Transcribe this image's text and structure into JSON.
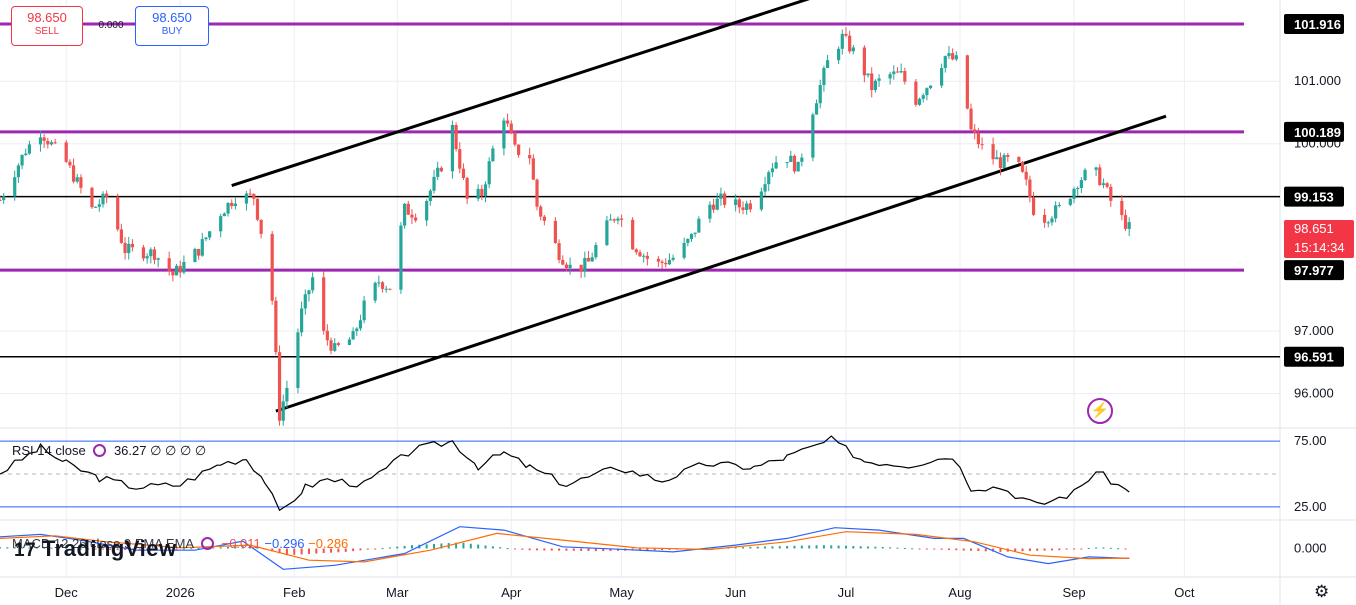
{
  "widgets": {
    "sell_price": "98.650",
    "sell_label": "SELL",
    "spread": "0.000",
    "buy_price": "98.650",
    "buy_label": "BUY"
  },
  "colors": {
    "up": "#26a69a",
    "down": "#ef5350",
    "level_purple": "#9c27b0",
    "level_black": "#000000",
    "rsi_band": "#2962ff",
    "macd_line": "#2962ff",
    "signal_line": "#ff6d00"
  },
  "rsi_legend": {
    "name": "RSI 14 close",
    "value": "36.27",
    "extras": "∅ ∅ ∅ ∅"
  },
  "macd_legend": {
    "name": "MACD 12 26 close 9 EMA EMA",
    "hist": "−0.011",
    "macd": "−0.296",
    "signal": "−0.286"
  },
  "logo": "TradingView",
  "icons": [
    "cycle-icon",
    "lightning-icon",
    "gear-icon"
  ],
  "chart_data": [
    {
      "type": "candlestick",
      "title": "",
      "x_range": [
        "2025-11-13",
        "2026-10-27"
      ],
      "y_range": [
        95.45,
        102.3
      ],
      "x_ticks": [
        "Dec",
        "2026",
        "Feb",
        "Mar",
        "Apr",
        "May",
        "Jun",
        "Jul",
        "Aug",
        "Sep",
        "Oct"
      ],
      "y_ticks": [
        "96.000",
        "97.000",
        "100.000",
        "101.000"
      ],
      "price_labels": [
        {
          "value": 101.916,
          "text": "101.916",
          "style": "black"
        },
        {
          "value": 100.189,
          "text": "100.189",
          "style": "black"
        },
        {
          "value": 99.153,
          "text": "99.153",
          "style": "black"
        },
        {
          "value": 98.651,
          "text": "98.651",
          "countdown": "15:14:34",
          "style": "red"
        },
        {
          "value": 97.977,
          "text": "97.977",
          "style": "black"
        },
        {
          "value": 96.591,
          "text": "96.591",
          "style": "black"
        }
      ],
      "horizontal_levels": [
        {
          "value": 101.916,
          "color": "#9c27b0"
        },
        {
          "value": 100.189,
          "color": "#9c27b0"
        },
        {
          "value": 99.153,
          "color": "#000000"
        },
        {
          "value": 97.977,
          "color": "#9c27b0"
        },
        {
          "value": 96.591,
          "color": "#000000"
        }
      ],
      "trend_lines": [
        {
          "from": [
            "2026-01-15",
            99.33
          ],
          "to": [
            "2026-07-03",
            102.55
          ]
        },
        {
          "from": [
            "2026-01-27",
            95.72
          ],
          "to": [
            "2026-09-26",
            100.44
          ]
        }
      ],
      "anchors": [
        [
          "2025-11-13",
          99.1
        ],
        [
          "2025-11-20",
          99.9
        ],
        [
          "2025-11-24",
          100.2
        ],
        [
          "2025-12-01",
          99.7
        ],
        [
          "2025-12-08",
          98.95
        ],
        [
          "2025-12-12",
          99.15
        ],
        [
          "2025-12-17",
          98.3
        ],
        [
          "2025-12-25",
          98.25
        ],
        [
          "2025-12-30",
          97.9
        ],
        [
          "2026-01-06",
          98.3
        ],
        [
          "2026-01-12",
          98.9
        ],
        [
          "2026-01-16",
          99.15
        ],
        [
          "2026-01-21",
          99.15
        ],
        [
          "2026-01-23",
          98.6
        ],
        [
          "2026-01-26",
          97.5
        ],
        [
          "2026-01-28",
          95.65
        ],
        [
          "2026-01-30",
          96.1
        ],
        [
          "2026-02-03",
          97.3
        ],
        [
          "2026-02-06",
          97.85
        ],
        [
          "2026-02-09",
          96.95
        ],
        [
          "2026-02-12",
          96.7
        ],
        [
          "2026-02-17",
          96.9
        ],
        [
          "2026-02-20",
          97.4
        ],
        [
          "2026-02-24",
          97.8
        ],
        [
          "2026-02-27",
          97.7
        ],
        [
          "2026-03-03",
          98.95
        ],
        [
          "2026-03-07",
          98.85
        ],
        [
          "2026-03-10",
          99.25
        ],
        [
          "2026-03-13",
          99.65
        ],
        [
          "2026-03-16",
          100.25
        ],
        [
          "2026-03-20",
          99.1
        ],
        [
          "2026-03-24",
          99.2
        ],
        [
          "2026-03-27",
          99.9
        ],
        [
          "2026-03-30",
          100.45
        ],
        [
          "2026-04-02",
          99.9
        ],
        [
          "2026-04-06",
          99.8
        ],
        [
          "2026-04-08",
          99.0
        ],
        [
          "2026-04-14",
          98.25
        ],
        [
          "2026-04-18",
          97.95
        ],
        [
          "2026-04-22",
          98.1
        ],
        [
          "2026-04-26",
          98.6
        ],
        [
          "2026-04-30",
          98.9
        ],
        [
          "2026-05-04",
          98.4
        ],
        [
          "2026-05-10",
          98.05
        ],
        [
          "2026-05-16",
          98.2
        ],
        [
          "2026-05-20",
          98.5
        ],
        [
          "2026-05-24",
          99.0
        ],
        [
          "2026-05-28",
          99.1
        ],
        [
          "2026-06-02",
          99.0
        ],
        [
          "2026-06-06",
          99.05
        ],
        [
          "2026-06-10",
          99.6
        ],
        [
          "2026-06-14",
          99.85
        ],
        [
          "2026-06-18",
          99.6
        ],
        [
          "2026-06-22",
          100.55
        ],
        [
          "2026-06-26",
          101.3
        ],
        [
          "2026-06-30",
          101.7
        ],
        [
          "2026-07-04",
          101.4
        ],
        [
          "2026-07-08",
          100.9
        ],
        [
          "2026-07-12",
          101.1
        ],
        [
          "2026-07-16",
          101.1
        ],
        [
          "2026-07-20",
          100.7
        ],
        [
          "2026-07-24",
          101.0
        ],
        [
          "2026-07-28",
          101.4
        ],
        [
          "2026-08-01",
          101.3
        ],
        [
          "2026-08-04",
          100.2
        ],
        [
          "2026-08-08",
          99.85
        ],
        [
          "2026-08-12",
          99.7
        ],
        [
          "2026-08-16",
          99.75
        ],
        [
          "2026-08-19",
          99.35
        ],
        [
          "2026-08-22",
          98.75
        ],
        [
          "2026-08-25",
          98.85
        ],
        [
          "2026-08-29",
          99.0
        ],
        [
          "2026-09-02",
          99.4
        ],
        [
          "2026-09-06",
          99.6
        ],
        [
          "2026-09-09",
          99.35
        ],
        [
          "2026-09-12",
          98.95
        ],
        [
          "2026-09-16",
          98.65
        ]
      ]
    },
    {
      "type": "line",
      "title": "RSI 14 close",
      "y_range": [
        15,
        85
      ],
      "y_ticks": [
        "75.00",
        "25.00"
      ],
      "bands": [
        75,
        50,
        25
      ],
      "series": [
        {
          "name": "RSI 14 close",
          "color": "#000000",
          "values": [
            [
              "2025-11-13",
              51
            ],
            [
              "2025-11-24",
              70
            ],
            [
              "2025-12-01",
              58
            ],
            [
              "2025-12-10",
              47
            ],
            [
              "2025-12-20",
              40
            ],
            [
              "2026-01-01",
              42
            ],
            [
              "2026-01-12",
              58
            ],
            [
              "2026-01-19",
              62
            ],
            [
              "2026-01-24",
              45
            ],
            [
              "2026-01-28",
              20
            ],
            [
              "2026-02-04",
              40
            ],
            [
              "2026-02-10",
              46
            ],
            [
              "2026-02-20",
              42
            ],
            [
              "2026-03-05",
              68
            ],
            [
              "2026-03-16",
              75
            ],
            [
              "2026-03-23",
              56
            ],
            [
              "2026-03-30",
              66
            ],
            [
              "2026-04-06",
              55
            ],
            [
              "2026-04-16",
              42
            ],
            [
              "2026-04-30",
              55
            ],
            [
              "2026-05-12",
              45
            ],
            [
              "2026-05-24",
              58
            ],
            [
              "2026-06-06",
              55
            ],
            [
              "2026-06-15",
              63
            ],
            [
              "2026-06-27",
              76
            ],
            [
              "2026-07-06",
              60
            ],
            [
              "2026-07-18",
              57
            ],
            [
              "2026-07-30",
              64
            ],
            [
              "2026-08-04",
              40
            ],
            [
              "2026-08-12",
              40
            ],
            [
              "2026-08-22",
              26
            ],
            [
              "2026-09-01",
              36
            ],
            [
              "2026-09-07",
              52
            ],
            [
              "2026-09-16",
              36.27
            ]
          ]
        }
      ]
    },
    {
      "type": "bar+line",
      "title": "MACD 12 26 close 9 EMA EMA",
      "y_range": [
        -0.85,
        0.85
      ],
      "y_ticks": [
        "0.000"
      ],
      "series": [
        {
          "name": "MACD",
          "color": "#2962ff",
          "values": [
            [
              "2025-11-13",
              0.35
            ],
            [
              "2025-11-24",
              0.42
            ],
            [
              "2025-12-05",
              0.25
            ],
            [
              "2025-12-20",
              -0.05
            ],
            [
              "2026-01-05",
              -0.05
            ],
            [
              "2026-01-18",
              0.22
            ],
            [
              "2026-01-29",
              -0.62
            ],
            [
              "2026-02-12",
              -0.5
            ],
            [
              "2026-03-03",
              -0.15
            ],
            [
              "2026-03-18",
              0.65
            ],
            [
              "2026-03-30",
              0.55
            ],
            [
              "2026-04-15",
              0.05
            ],
            [
              "2026-04-30",
              -0.02
            ],
            [
              "2026-05-15",
              -0.1
            ],
            [
              "2026-06-01",
              0.1
            ],
            [
              "2026-06-15",
              0.3
            ],
            [
              "2026-06-28",
              0.62
            ],
            [
              "2026-07-10",
              0.55
            ],
            [
              "2026-07-25",
              0.3
            ],
            [
              "2026-08-02",
              0.3
            ],
            [
              "2026-08-14",
              -0.25
            ],
            [
              "2026-08-25",
              -0.45
            ],
            [
              "2026-09-05",
              -0.25
            ],
            [
              "2026-09-16",
              -0.296
            ]
          ]
        },
        {
          "name": "Signal",
          "color": "#ff6d00",
          "values": [
            [
              "2025-11-13",
              0.3
            ],
            [
              "2025-11-28",
              0.38
            ],
            [
              "2025-12-12",
              0.2
            ],
            [
              "2026-01-01",
              0.02
            ],
            [
              "2026-01-20",
              0.1
            ],
            [
              "2026-02-05",
              -0.35
            ],
            [
              "2026-02-20",
              -0.4
            ],
            [
              "2026-03-10",
              -0.05
            ],
            [
              "2026-03-28",
              0.45
            ],
            [
              "2026-04-15",
              0.25
            ],
            [
              "2026-05-05",
              0.02
            ],
            [
              "2026-05-25",
              -0.03
            ],
            [
              "2026-06-15",
              0.2
            ],
            [
              "2026-07-01",
              0.5
            ],
            [
              "2026-07-20",
              0.42
            ],
            [
              "2026-08-05",
              0.2
            ],
            [
              "2026-08-20",
              -0.2
            ],
            [
              "2026-09-05",
              -0.3
            ],
            [
              "2026-09-16",
              -0.286
            ]
          ]
        }
      ],
      "histogram": [
        [
          "2025-11-13",
          0.04
        ],
        [
          "2025-12-01",
          0.02
        ],
        [
          "2025-12-15",
          -0.05
        ],
        [
          "2026-01-10",
          0.03
        ],
        [
          "2026-01-20",
          0.08
        ],
        [
          "2026-01-30",
          -0.2
        ],
        [
          "2026-02-15",
          -0.1
        ],
        [
          "2026-03-05",
          0.1
        ],
        [
          "2026-03-18",
          0.18
        ],
        [
          "2026-04-05",
          -0.05
        ],
        [
          "2026-04-25",
          -0.08
        ],
        [
          "2026-05-15",
          -0.04
        ],
        [
          "2026-06-05",
          0.05
        ],
        [
          "2026-06-25",
          0.1
        ],
        [
          "2026-07-10",
          0.05
        ],
        [
          "2026-07-28",
          -0.04
        ],
        [
          "2026-08-12",
          -0.1
        ],
        [
          "2026-08-28",
          -0.05
        ],
        [
          "2026-09-08",
          0.04
        ],
        [
          "2026-09-16",
          -0.011
        ]
      ]
    }
  ]
}
